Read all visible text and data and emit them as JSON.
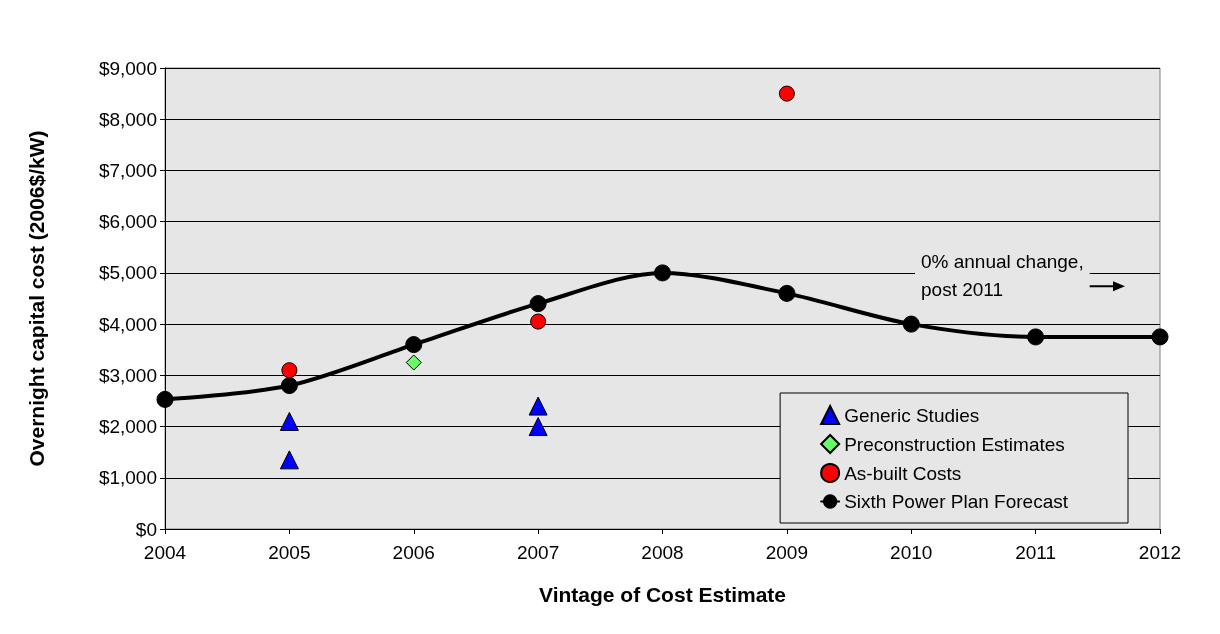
{
  "chart_data": {
    "type": "scatter",
    "xlabel": "Vintage of Cost Estimate",
    "ylabel": "Overnight capital cost (2006$/kW)",
    "xlim": [
      2004,
      2012
    ],
    "xticks": [
      2004,
      2005,
      2006,
      2007,
      2008,
      2009,
      2010,
      2011,
      2012
    ],
    "ylim": [
      0,
      9000
    ],
    "yticks": [
      {
        "value": 0,
        "label": "$0"
      },
      {
        "value": 1000,
        "label": "$1,000"
      },
      {
        "value": 2000,
        "label": "$2,000"
      },
      {
        "value": 3000,
        "label": "$3,000"
      },
      {
        "value": 4000,
        "label": "$4,000"
      },
      {
        "value": 5000,
        "label": "$5,000"
      },
      {
        "value": 6000,
        "label": "$6,000"
      },
      {
        "value": 7000,
        "label": "$7,000"
      },
      {
        "value": 8000,
        "label": "$8,000"
      },
      {
        "value": 9000,
        "label": "$9,000"
      }
    ],
    "grid": "y",
    "legend": "bottom right",
    "annotations": [
      "0% annual change,\npost 2011"
    ],
    "series": [
      {
        "name": "Generic Studies",
        "type": "scatter",
        "marker": "triangle",
        "color": "#0000ff",
        "x": [
          2005,
          2005,
          2007,
          2007
        ],
        "values": [
          2100,
          1350,
          2400,
          2000
        ]
      },
      {
        "name": "Preconstruction Estimates",
        "type": "scatter",
        "marker": "diamond",
        "color": "#66ff66",
        "x": [
          2006
        ],
        "values": [
          3250
        ]
      },
      {
        "name": "As-built Costs",
        "type": "scatter",
        "marker": "circle",
        "color": "#ff0000",
        "x": [
          2005,
          2007,
          2009
        ],
        "values": [
          3100,
          4050,
          8500
        ]
      },
      {
        "name": "Sixth Power Plan Forecast",
        "type": "line",
        "marker": "circle",
        "color": "#000000",
        "x": [
          2004,
          2005,
          2006,
          2007,
          2008,
          2009,
          2010,
          2011,
          2012
        ],
        "values": [
          2530,
          2800,
          3600,
          4400,
          5000,
          4600,
          4000,
          3750,
          3750
        ]
      }
    ]
  }
}
